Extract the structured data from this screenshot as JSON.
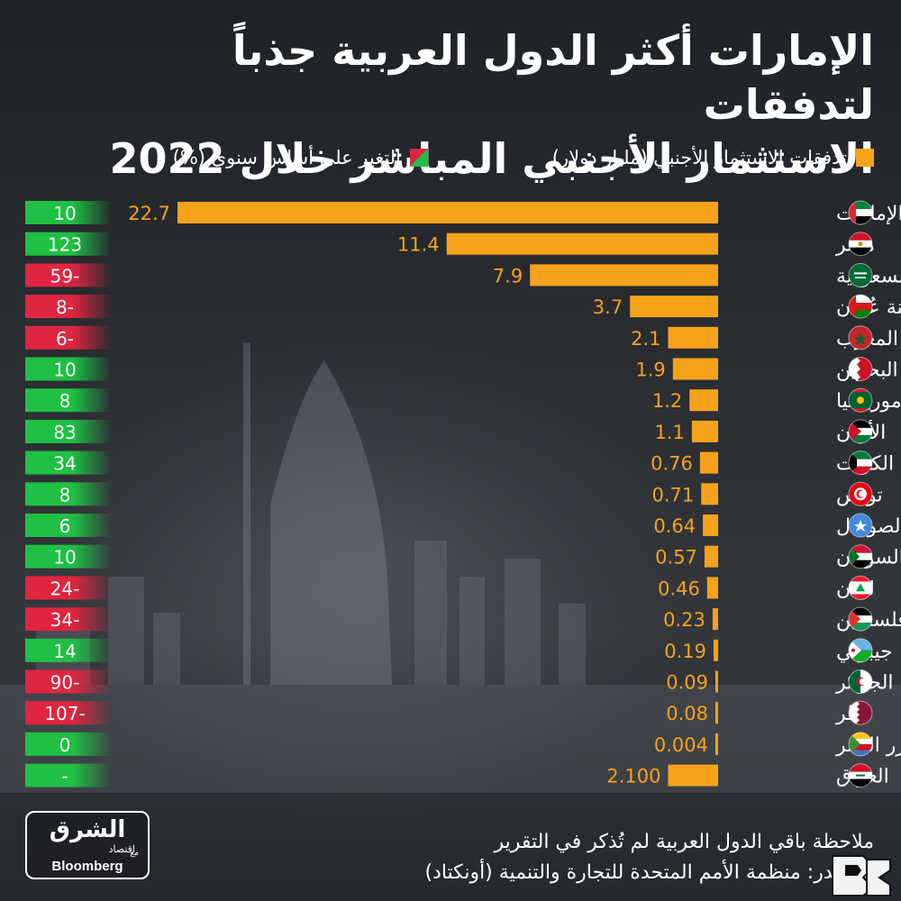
{
  "title_line1": "الإمارات أكثر الدول العربية جذباً لتدفقات",
  "title_line2": "الاستثمار الأجنبي المباشر خلال 2022",
  "legend": {
    "fdi_label": "تدفقات الاستثمار الأجنبي (مليار دولار)",
    "change_label": "التغير على أساس سنوي (%)",
    "fdi_color": "#f7a21b",
    "positive_color": "#1fc043",
    "negative_color": "#e02540"
  },
  "chart_data": {
    "type": "bar",
    "orientation": "horizontal",
    "categories": [
      "الإمارات",
      "مصر",
      "السعودية",
      "سلطنة عُمان",
      "المغرب",
      "البحرين",
      "موريتانيا",
      "الأردن",
      "الكويت",
      "تونس",
      "الصومال",
      "السودان",
      "لبنان",
      "فلسطين",
      "جيبوتي",
      "الجزائر",
      "قطر",
      "جزر القمر",
      "العراق"
    ],
    "value_labels": [
      "22.7",
      "11.4",
      "7.9",
      "3.7",
      "2.1",
      "1.9",
      "1.2",
      "1.1",
      "0.76",
      "0.71",
      "0.64",
      "0.57",
      "0.46",
      "0.23",
      "0.19",
      "0.09",
      "0.08",
      "0.004",
      "2.100"
    ],
    "values": [
      22.7,
      11.4,
      7.9,
      3.7,
      2.1,
      1.9,
      1.2,
      1.1,
      0.76,
      0.71,
      0.64,
      0.57,
      0.46,
      0.23,
      0.19,
      0.09,
      0.08,
      0.004,
      2.1
    ],
    "yoy_change_labels": [
      "10",
      "123",
      "59-",
      "8-",
      "6-",
      "10",
      "8",
      "83",
      "34",
      "8",
      "6",
      "10",
      "24-",
      "34-",
      "14",
      "90-",
      "107-",
      "0",
      "-"
    ],
    "yoy_change_sign": [
      "pos",
      "pos",
      "neg",
      "neg",
      "neg",
      "pos",
      "pos",
      "pos",
      "pos",
      "pos",
      "pos",
      "pos",
      "neg",
      "neg",
      "pos",
      "neg",
      "neg",
      "pos",
      "pos"
    ],
    "flags": [
      "uae-flag",
      "egypt-flag",
      "saudi-flag",
      "oman-flag",
      "morocco-flag",
      "bahrain-flag",
      "mauritania-flag",
      "jordan-flag",
      "kuwait-flag",
      "tunisia-flag",
      "somalia-flag",
      "sudan-flag",
      "lebanon-flag",
      "palestine-flag",
      "djibouti-flag",
      "algeria-flag",
      "qatar-flag",
      "comoros-flag",
      "iraq-flag"
    ],
    "xlim": [
      0,
      22.7
    ]
  },
  "footer": {
    "note": "ملاحظة باقي الدول العربية لم تُذكر في التقرير",
    "source": "المصدر: منظمة الأمم المتحدة للتجارة والتنمية (أونكتاد)"
  },
  "logo": {
    "main": "الشرق",
    "sub": "اقتصاد",
    "with": "مع",
    "bloomberg": "Bloomberg"
  }
}
